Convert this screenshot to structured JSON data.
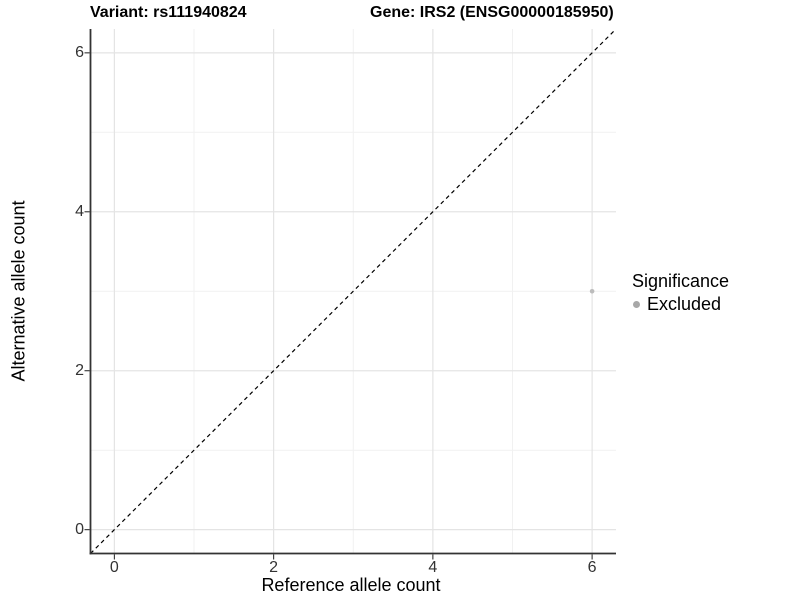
{
  "chart_data": {
    "type": "scatter",
    "title_left": "Variant: rs111940824",
    "title_right": "Gene: IRS2 (ENSG00000185950)",
    "xlabel": "Reference allele count",
    "ylabel": "Alternative allele count",
    "xlim": [
      -0.3,
      6.3
    ],
    "ylim": [
      -0.3,
      6.3
    ],
    "x_ticks": [
      0,
      2,
      4,
      6
    ],
    "y_ticks": [
      0,
      2,
      4,
      6
    ],
    "x_minor_ticks": [
      1,
      3,
      5
    ],
    "y_minor_ticks": [
      1,
      3,
      5
    ],
    "grid": "major+minor",
    "reference_line": {
      "type": "identity",
      "from": [
        -0.3,
        -0.3
      ],
      "to": [
        6.3,
        6.3
      ],
      "style": "dashed",
      "color": "#000000"
    },
    "series": [
      {
        "name": "Excluded",
        "color": "#bcbcbc",
        "point_radius": 2.3,
        "points": [
          {
            "x": 6,
            "y": 3
          }
        ]
      }
    ],
    "legend": {
      "title": "Significance",
      "position": "right",
      "entries": [
        {
          "label": "Excluded",
          "color": "#a8a8a8"
        }
      ]
    }
  },
  "colors": {
    "background": "#ffffff",
    "axis_line": "#333333",
    "tick_mark": "#333333",
    "tick_text": "#333333",
    "title_text": "#000000",
    "grid_major": "#e4e4e4",
    "grid_minor": "#f1f1f1"
  }
}
